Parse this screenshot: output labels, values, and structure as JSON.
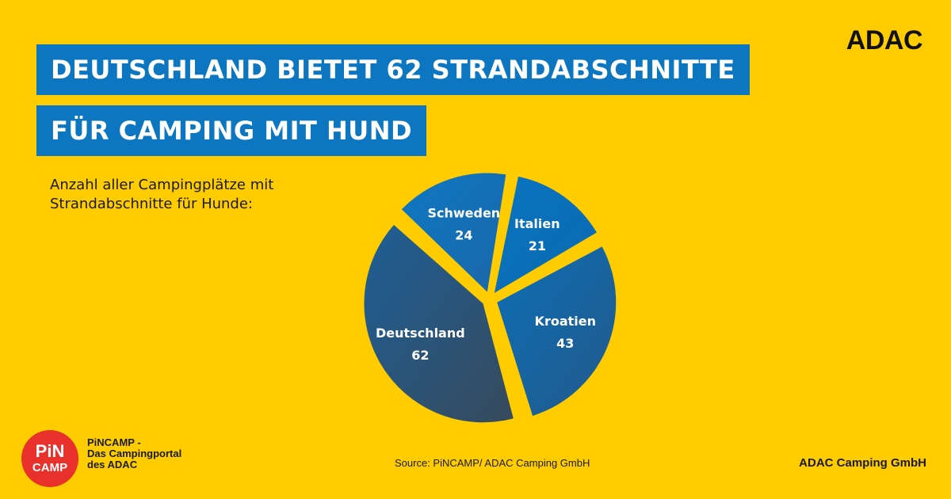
{
  "header": {
    "title_line1": "DEUTSCHLAND BIETET 62 STRANDABSCHNITTE",
    "title_line2": "FÜR CAMPING MIT HUND",
    "brand": "ADAC"
  },
  "subtitle": {
    "line1": "Anzahl aller Campingplätze mit",
    "line2": "Strandabschnitte für Hunde:"
  },
  "footer": {
    "pincamp_logo_line1": "PiN",
    "pincamp_logo_line2": "CAMP",
    "pincamp_line1": "PiNCAMP -",
    "pincamp_line2": "Das Campingportal",
    "pincamp_line3": "des ADAC",
    "source": "Source: PiNCAMP/ ADAC Camping GmbH",
    "company": "ADAC Camping GmbH"
  },
  "colors": {
    "background": "#ffcc00",
    "title_bar": "#0c77c0",
    "pincamp_red": "#e8312a"
  },
  "chart_data": {
    "type": "pie",
    "categories": [
      "Italien",
      "Kroatien",
      "Deutschland",
      "Schweden"
    ],
    "values": [
      21,
      43,
      62,
      24
    ],
    "exploded": true,
    "title": "",
    "colors": [
      "#0a6fb8",
      "#1665a4",
      "#2a5478",
      "#1672b8"
    ]
  }
}
